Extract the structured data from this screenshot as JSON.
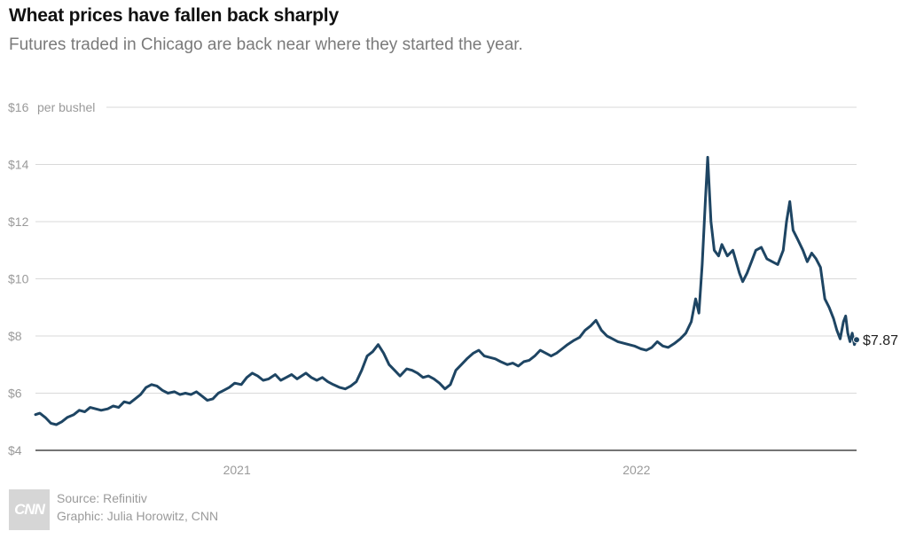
{
  "header": {
    "title": "Wheat prices have fallen back sharply",
    "subtitle": "Futures traded in Chicago are back near where they started the year."
  },
  "footer": {
    "logo_text": "CNN",
    "source": "Source: Refinitiv",
    "graphic": "Graphic: Julia Horowitz, CNN"
  },
  "colors": {
    "line": "#1e4563",
    "grid": "#d9d9d9",
    "axis": "#222222"
  },
  "chart_data": {
    "type": "line",
    "title": "Wheat prices have fallen back sharply",
    "subtitle": "Futures traded in Chicago are back near where they started the year.",
    "y_unit": "per bushel",
    "ylim": [
      4,
      16
    ],
    "y_ticks": [
      4,
      6,
      8,
      10,
      12,
      14,
      16
    ],
    "y_tick_labels": [
      "$4",
      "$6",
      "$8",
      "$10",
      "$12",
      "$14",
      "$16"
    ],
    "xlim": [
      "2020-07-01",
      "2022-07-21"
    ],
    "x_ticks": [
      {
        "date": "2021-01-01",
        "label": "2021"
      },
      {
        "date": "2022-01-01",
        "label": "2022"
      }
    ],
    "grid": true,
    "end_label": "$7.87",
    "series": [
      {
        "points": [
          [
            "2020-07-01",
            5.25
          ],
          [
            "2020-07-05",
            5.3
          ],
          [
            "2020-07-10",
            5.15
          ],
          [
            "2020-07-15",
            4.95
          ],
          [
            "2020-07-20",
            4.9
          ],
          [
            "2020-07-25",
            5.0
          ],
          [
            "2020-07-30",
            5.15
          ],
          [
            "2020-08-05",
            5.25
          ],
          [
            "2020-08-10",
            5.4
          ],
          [
            "2020-08-15",
            5.35
          ],
          [
            "2020-08-20",
            5.5
          ],
          [
            "2020-08-25",
            5.45
          ],
          [
            "2020-08-30",
            5.4
          ],
          [
            "2020-09-05",
            5.45
          ],
          [
            "2020-09-10",
            5.55
          ],
          [
            "2020-09-15",
            5.5
          ],
          [
            "2020-09-20",
            5.7
          ],
          [
            "2020-09-25",
            5.65
          ],
          [
            "2020-09-30",
            5.8
          ],
          [
            "2020-10-05",
            5.95
          ],
          [
            "2020-10-10",
            6.2
          ],
          [
            "2020-10-15",
            6.3
          ],
          [
            "2020-10-20",
            6.25
          ],
          [
            "2020-10-25",
            6.1
          ],
          [
            "2020-10-30",
            6.0
          ],
          [
            "2020-11-05",
            6.05
          ],
          [
            "2020-11-10",
            5.95
          ],
          [
            "2020-11-15",
            6.0
          ],
          [
            "2020-11-20",
            5.95
          ],
          [
            "2020-11-25",
            6.05
          ],
          [
            "2020-11-30",
            5.9
          ],
          [
            "2020-12-05",
            5.75
          ],
          [
            "2020-12-10",
            5.8
          ],
          [
            "2020-12-15",
            6.0
          ],
          [
            "2020-12-20",
            6.1
          ],
          [
            "2020-12-25",
            6.2
          ],
          [
            "2020-12-30",
            6.35
          ],
          [
            "2021-01-05",
            6.3
          ],
          [
            "2021-01-10",
            6.55
          ],
          [
            "2021-01-15",
            6.7
          ],
          [
            "2021-01-20",
            6.6
          ],
          [
            "2021-01-25",
            6.45
          ],
          [
            "2021-01-30",
            6.5
          ],
          [
            "2021-02-05",
            6.65
          ],
          [
            "2021-02-10",
            6.45
          ],
          [
            "2021-02-15",
            6.55
          ],
          [
            "2021-02-20",
            6.65
          ],
          [
            "2021-02-25",
            6.5
          ],
          [
            "2021-03-05",
            6.7
          ],
          [
            "2021-03-10",
            6.55
          ],
          [
            "2021-03-15",
            6.45
          ],
          [
            "2021-03-20",
            6.55
          ],
          [
            "2021-03-25",
            6.4
          ],
          [
            "2021-03-30",
            6.3
          ],
          [
            "2021-04-05",
            6.2
          ],
          [
            "2021-04-10",
            6.15
          ],
          [
            "2021-04-15",
            6.25
          ],
          [
            "2021-04-20",
            6.4
          ],
          [
            "2021-04-25",
            6.8
          ],
          [
            "2021-04-30",
            7.3
          ],
          [
            "2021-05-05",
            7.45
          ],
          [
            "2021-05-10",
            7.7
          ],
          [
            "2021-05-15",
            7.4
          ],
          [
            "2021-05-20",
            7.0
          ],
          [
            "2021-05-25",
            6.8
          ],
          [
            "2021-05-30",
            6.6
          ],
          [
            "2021-06-05",
            6.85
          ],
          [
            "2021-06-10",
            6.8
          ],
          [
            "2021-06-15",
            6.7
          ],
          [
            "2021-06-20",
            6.55
          ],
          [
            "2021-06-25",
            6.6
          ],
          [
            "2021-06-30",
            6.5
          ],
          [
            "2021-07-05",
            6.35
          ],
          [
            "2021-07-10",
            6.15
          ],
          [
            "2021-07-15",
            6.3
          ],
          [
            "2021-07-20",
            6.8
          ],
          [
            "2021-07-25",
            7.0
          ],
          [
            "2021-07-30",
            7.2
          ],
          [
            "2021-08-05",
            7.4
          ],
          [
            "2021-08-10",
            7.5
          ],
          [
            "2021-08-15",
            7.3
          ],
          [
            "2021-08-20",
            7.25
          ],
          [
            "2021-08-25",
            7.2
          ],
          [
            "2021-08-30",
            7.1
          ],
          [
            "2021-09-05",
            7.0
          ],
          [
            "2021-09-10",
            7.05
          ],
          [
            "2021-09-15",
            6.95
          ],
          [
            "2021-09-20",
            7.1
          ],
          [
            "2021-09-25",
            7.15
          ],
          [
            "2021-09-30",
            7.3
          ],
          [
            "2021-10-05",
            7.5
          ],
          [
            "2021-10-10",
            7.4
          ],
          [
            "2021-10-15",
            7.3
          ],
          [
            "2021-10-20",
            7.4
          ],
          [
            "2021-10-25",
            7.55
          ],
          [
            "2021-10-30",
            7.7
          ],
          [
            "2021-11-05",
            7.85
          ],
          [
            "2021-11-10",
            7.95
          ],
          [
            "2021-11-15",
            8.2
          ],
          [
            "2021-11-20",
            8.35
          ],
          [
            "2021-11-25",
            8.55
          ],
          [
            "2021-11-30",
            8.2
          ],
          [
            "2021-12-05",
            8.0
          ],
          [
            "2021-12-10",
            7.9
          ],
          [
            "2021-12-15",
            7.8
          ],
          [
            "2021-12-20",
            7.75
          ],
          [
            "2021-12-25",
            7.7
          ],
          [
            "2021-12-30",
            7.65
          ],
          [
            "2022-01-05",
            7.55
          ],
          [
            "2022-01-10",
            7.5
          ],
          [
            "2022-01-15",
            7.6
          ],
          [
            "2022-01-20",
            7.8
          ],
          [
            "2022-01-25",
            7.65
          ],
          [
            "2022-01-30",
            7.6
          ],
          [
            "2022-02-05",
            7.75
          ],
          [
            "2022-02-10",
            7.9
          ],
          [
            "2022-02-15",
            8.1
          ],
          [
            "2022-02-20",
            8.5
          ],
          [
            "2022-02-24",
            9.3
          ],
          [
            "2022-02-27",
            8.8
          ],
          [
            "2022-03-02",
            10.5
          ],
          [
            "2022-03-05",
            12.8
          ],
          [
            "2022-03-07",
            14.25
          ],
          [
            "2022-03-10",
            12.0
          ],
          [
            "2022-03-13",
            11.0
          ],
          [
            "2022-03-17",
            10.8
          ],
          [
            "2022-03-20",
            11.2
          ],
          [
            "2022-03-25",
            10.8
          ],
          [
            "2022-03-30",
            11.0
          ],
          [
            "2022-04-05",
            10.2
          ],
          [
            "2022-04-08",
            9.9
          ],
          [
            "2022-04-12",
            10.2
          ],
          [
            "2022-04-16",
            10.6
          ],
          [
            "2022-04-20",
            11.0
          ],
          [
            "2022-04-25",
            11.1
          ],
          [
            "2022-04-30",
            10.7
          ],
          [
            "2022-05-05",
            10.6
          ],
          [
            "2022-05-10",
            10.5
          ],
          [
            "2022-05-15",
            11.0
          ],
          [
            "2022-05-18",
            12.0
          ],
          [
            "2022-05-21",
            12.7
          ],
          [
            "2022-05-24",
            11.7
          ],
          [
            "2022-05-28",
            11.4
          ],
          [
            "2022-06-02",
            11.0
          ],
          [
            "2022-06-06",
            10.6
          ],
          [
            "2022-06-10",
            10.9
          ],
          [
            "2022-06-14",
            10.7
          ],
          [
            "2022-06-18",
            10.4
          ],
          [
            "2022-06-22",
            9.3
          ],
          [
            "2022-06-26",
            9.0
          ],
          [
            "2022-06-30",
            8.6
          ],
          [
            "2022-07-03",
            8.2
          ],
          [
            "2022-07-06",
            7.9
          ],
          [
            "2022-07-09",
            8.5
          ],
          [
            "2022-07-11",
            8.7
          ],
          [
            "2022-07-13",
            8.1
          ],
          [
            "2022-07-15",
            7.8
          ],
          [
            "2022-07-17",
            8.1
          ],
          [
            "2022-07-19",
            7.7
          ],
          [
            "2022-07-21",
            7.87
          ]
        ]
      }
    ]
  }
}
